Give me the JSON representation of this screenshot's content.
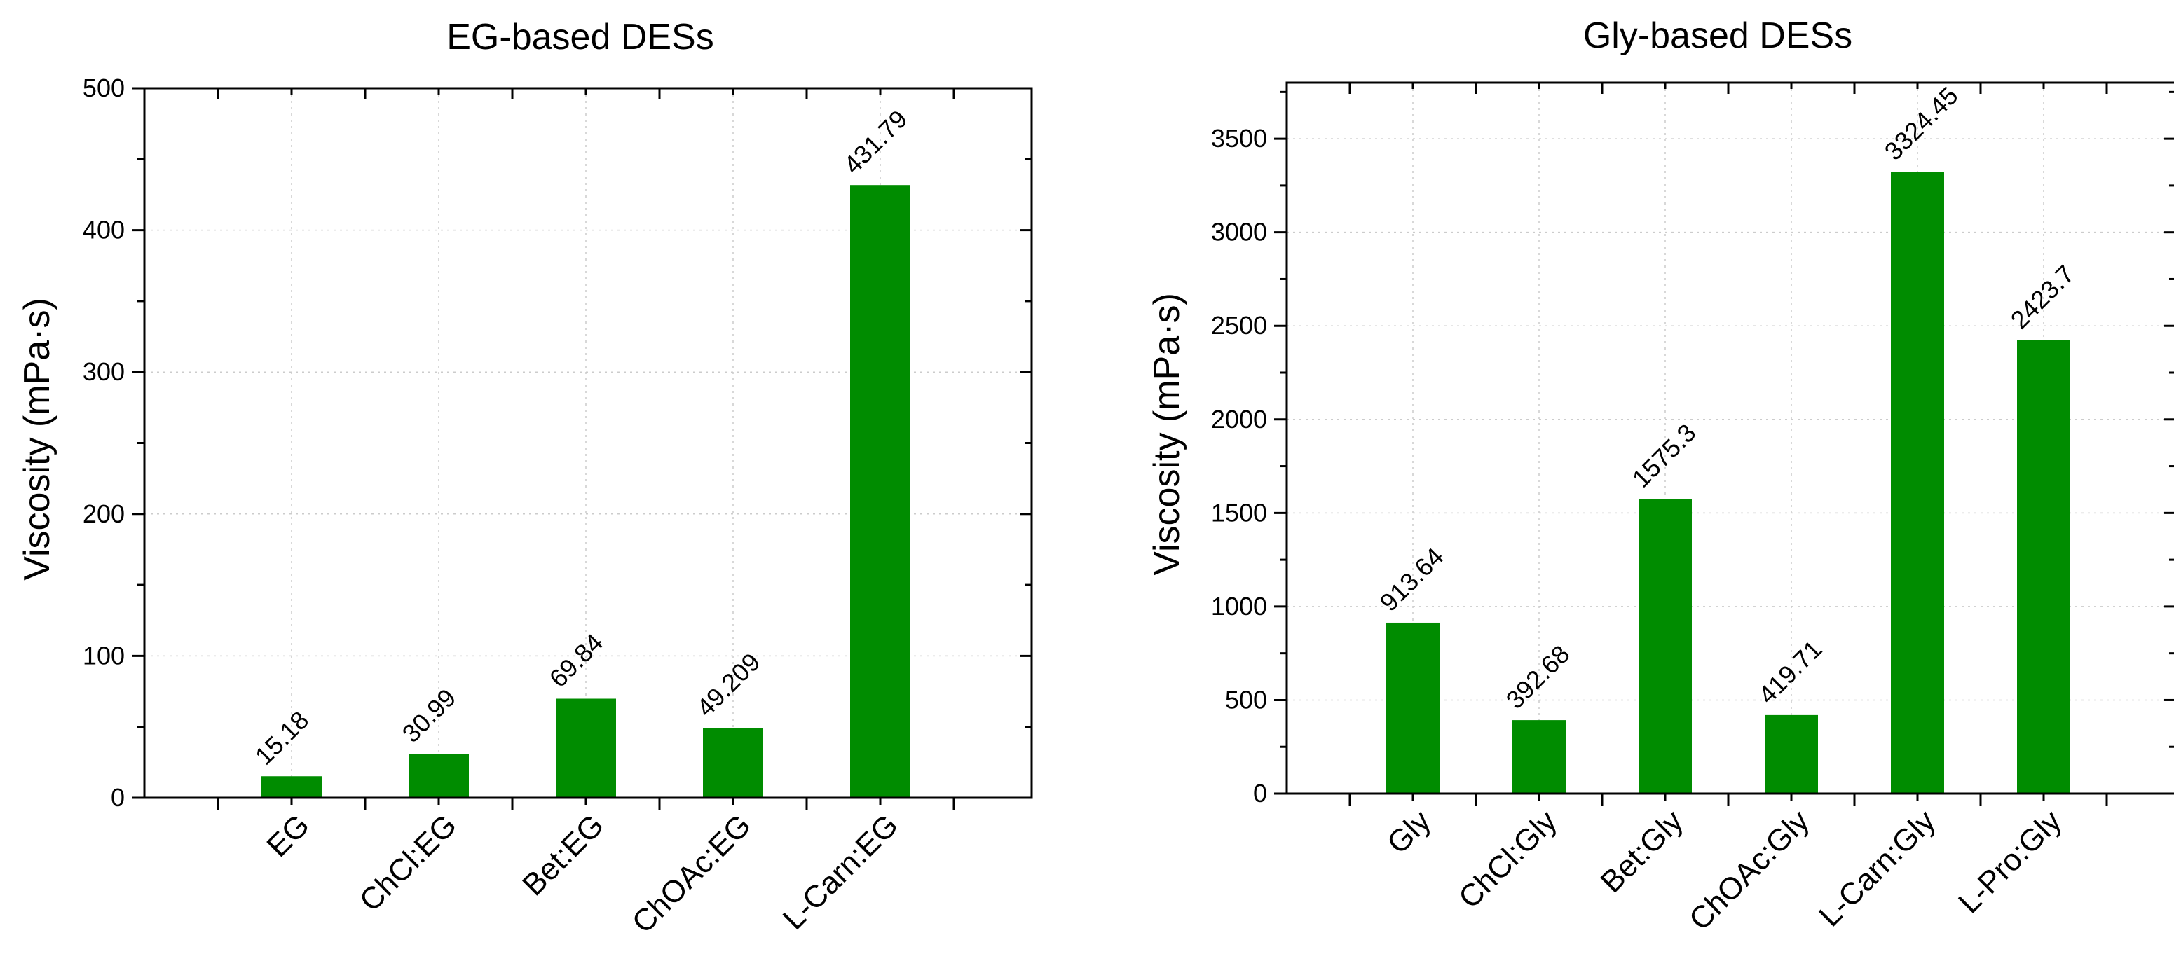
{
  "chart_data": [
    {
      "type": "bar",
      "title": "EG-based DESs",
      "xlabel": "",
      "ylabel": "Viscosity (mPa·s)",
      "categories": [
        "EG",
        "ChCl:EG",
        "Bet:EG",
        "ChOAc:EG",
        "L-Carn:EG"
      ],
      "values": [
        15.18,
        30.99,
        69.84,
        49.209,
        431.79
      ],
      "data_labels": [
        "15.18",
        "30.99",
        "69.84",
        "49.209",
        "431.79"
      ],
      "ylim": [
        0,
        500
      ],
      "yticks": [
        0,
        100,
        200,
        300,
        400,
        500
      ],
      "grid": true,
      "bar_color": "#008c00"
    },
    {
      "type": "bar",
      "title": "Gly-based DESs",
      "xlabel": "",
      "ylabel": "Viscosity (mPa·s)",
      "categories": [
        "Gly",
        "ChCl:Gly",
        "Bet:Gly",
        "ChOAc:Gly",
        "L-Carn:Gly",
        "L-Pro:Gly"
      ],
      "values": [
        913.64,
        392.68,
        1575.3,
        419.71,
        3324.45,
        2423.7
      ],
      "data_labels": [
        "913.64",
        "392.68",
        "1575.3",
        "419.71",
        "3324.45",
        "2423.7"
      ],
      "ylim": [
        0,
        3800
      ],
      "yticks": [
        0,
        500,
        1000,
        1500,
        2000,
        2500,
        3000,
        3500
      ],
      "grid": true,
      "bar_color": "#008c00"
    }
  ]
}
